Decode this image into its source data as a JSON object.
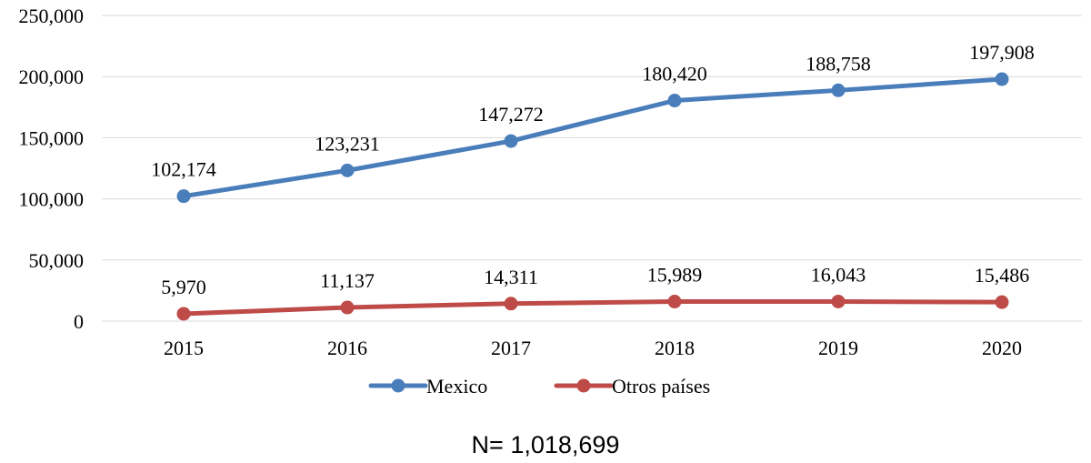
{
  "chart_data": {
    "type": "line",
    "categories": [
      "2015",
      "2016",
      "2017",
      "2018",
      "2019",
      "2020"
    ],
    "series": [
      {
        "name": "Mexico",
        "color": "#4a7ebb",
        "values": [
          102174,
          123231,
          147272,
          180420,
          188758,
          197908
        ],
        "labels": [
          "102,174",
          "123,231",
          "147,272",
          "180,420",
          "188,758",
          "197,908"
        ]
      },
      {
        "name": "Otros países",
        "color": "#be4b48",
        "values": [
          5970,
          11137,
          14311,
          15989,
          16043,
          15486
        ],
        "labels": [
          "5,970",
          "11,137",
          "14,311",
          "15,989",
          "16,043",
          "15,486"
        ]
      }
    ],
    "yticks": [
      0,
      50000,
      100000,
      150000,
      200000,
      250000
    ],
    "ytick_labels": [
      "0",
      "50,000",
      "100,000",
      "150,000",
      "200,000",
      "250,000"
    ],
    "ylim": [
      0,
      250000
    ],
    "grid": true,
    "legend_position": "bottom"
  },
  "note": "N= 1,018,699"
}
